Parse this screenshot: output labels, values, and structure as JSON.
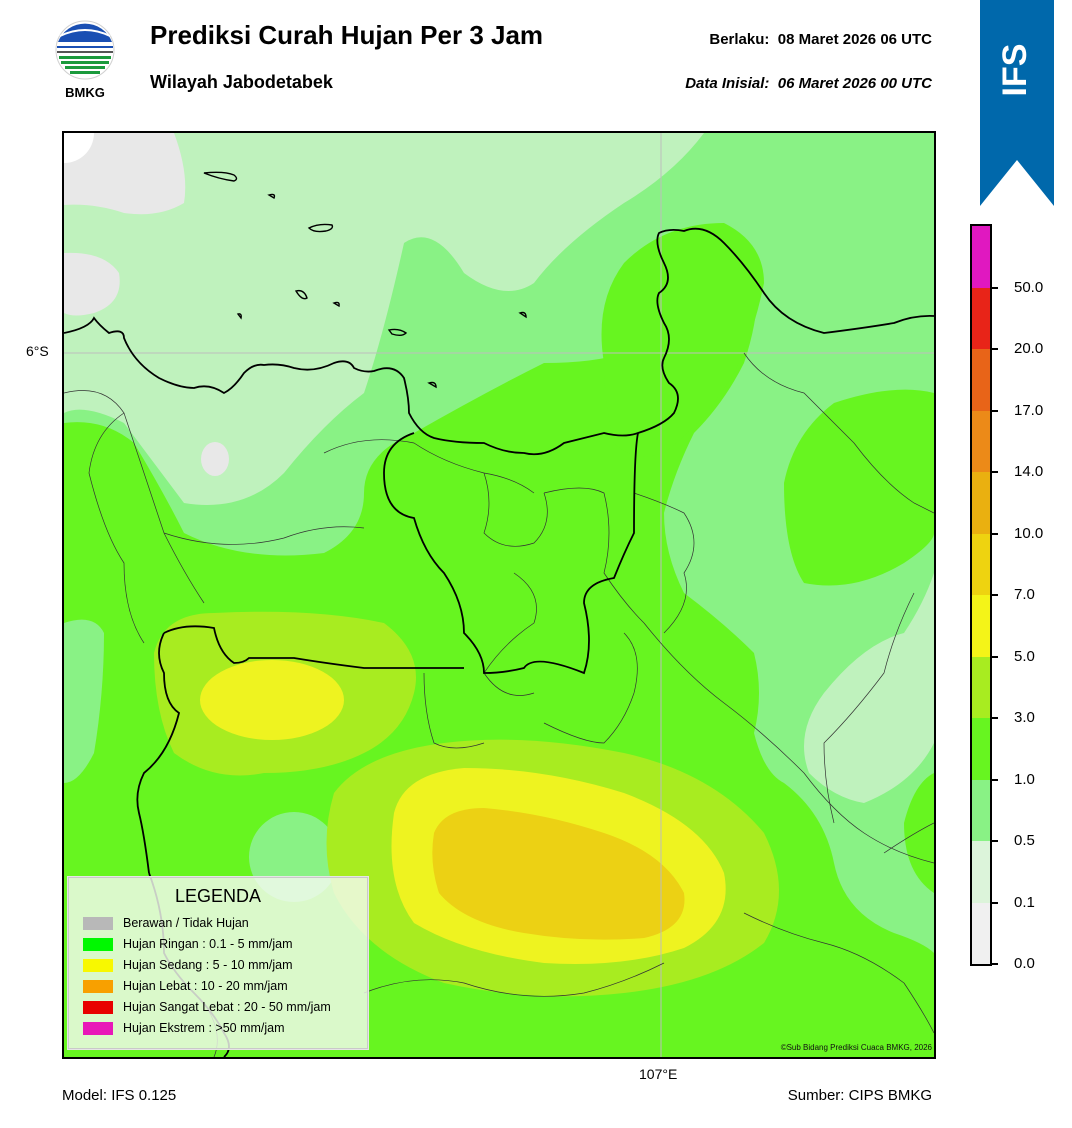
{
  "header": {
    "logo_text": "BMKG",
    "title": "Prediksi Curah Hujan Per 3 Jam",
    "subtitle": "Wilayah Jabodetabek",
    "valid_label": "Berlaku:",
    "valid_value": "08 Maret 2026 06 UTC",
    "init_label": "Data Inisial:",
    "init_value": "06 Maret 2026 00 UTC"
  },
  "model_banner": {
    "text": "IFS",
    "color": "#0068ab"
  },
  "map": {
    "lat_label": "6°S",
    "lon_label": "107°E",
    "credit": "©Sub Bidang Prediksi Cuaca BMKG, 2026",
    "colors": {
      "light_gray": "#e8e8e8",
      "pale_green": "#bff2bd",
      "light_green": "#89f285",
      "green": "#67f520",
      "yellow_green": "#a8ec20",
      "yellow": "#eef320",
      "dark_yellow": "#ecd114"
    }
  },
  "legend": {
    "title": "LEGENDA",
    "items": [
      {
        "label": "Berawan / Tidak Hujan",
        "color": "#b8b8b8"
      },
      {
        "label": "Hujan Ringan : 0.1 - 5 mm/jam",
        "color": "#00f800"
      },
      {
        "label": "Hujan Sedang : 5 - 10 mm/jam",
        "color": "#f8f800"
      },
      {
        "label": "Hujan Lebat : 10 - 20 mm/jam",
        "color": "#f8a000"
      },
      {
        "label": "Hujan Sangat Lebat : 20 - 50 mm/jam",
        "color": "#e80000"
      },
      {
        "label": "Hujan Ekstrem : >50 mm/jam",
        "color": "#e818b8"
      }
    ]
  },
  "colorbar": {
    "ticks": [
      "0.0",
      "0.1",
      "0.5",
      "1.0",
      "3.0",
      "5.0",
      "7.0",
      "10.0",
      "14.0",
      "17.0",
      "20.0",
      "50.0"
    ],
    "segments": [
      "#f0f0f0",
      "#dcf4da",
      "#89f285",
      "#67f520",
      "#a8ec20",
      "#f4f418",
      "#eed310",
      "#eab010",
      "#ec8a18",
      "#e86418",
      "#e82418",
      "#e018c0"
    ]
  },
  "footer": {
    "model": "Model: IFS 0.125",
    "source": "Sumber: CIPS BMKG"
  }
}
